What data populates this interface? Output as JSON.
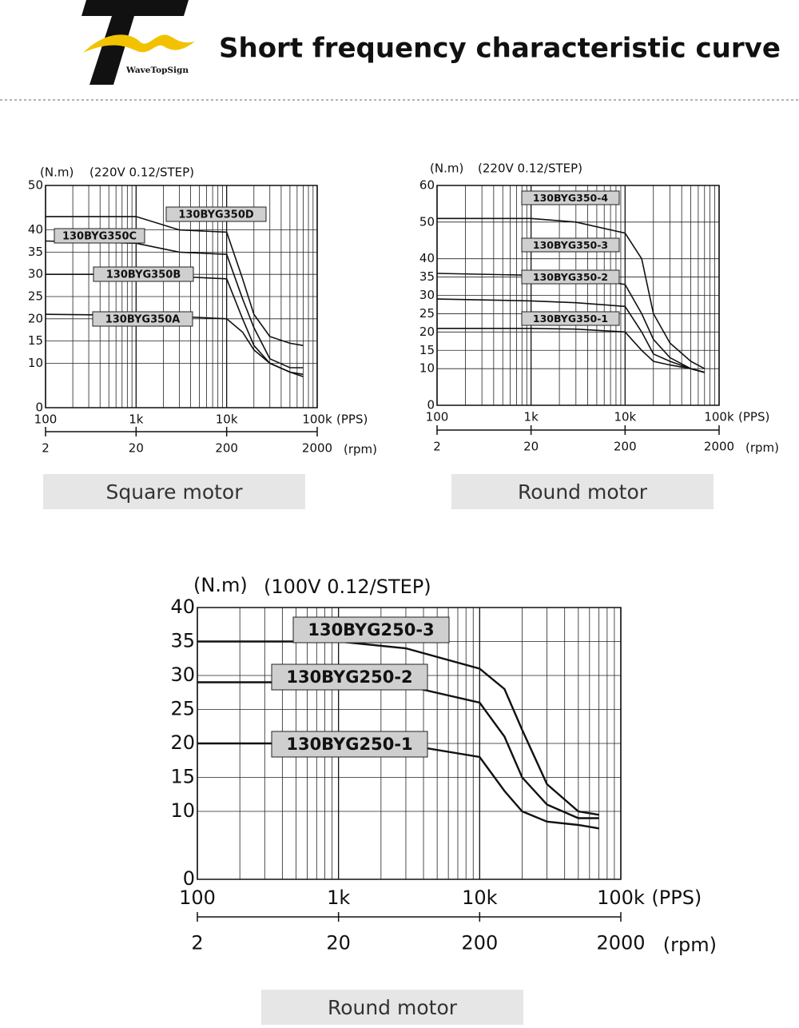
{
  "header": {
    "logo_text": "WaveTopSign",
    "title": "Short frequency characteristic curve"
  },
  "chart_data": [
    {
      "type": "line",
      "y_label": "(N.m)",
      "subtitle": "(220V 0.12/STEP)",
      "x_label": "(PPS)",
      "x2_label": "(rpm)",
      "caption": "Square motor",
      "x_scale": "log",
      "xlim": [
        100,
        100000
      ],
      "xticks": [
        100,
        {
          "value": 1000,
          "label": "1k"
        },
        {
          "value": 10000,
          "label": "10k"
        },
        {
          "value": 100000,
          "label": "100k"
        }
      ],
      "x2lim": [
        2,
        2000
      ],
      "x2ticks": [
        2,
        20,
        200,
        2000
      ],
      "ylim": [
        0,
        50
      ],
      "yticks": [
        0,
        10,
        15,
        20,
        25,
        30,
        35,
        40,
        50
      ],
      "grid": true,
      "x": [
        100,
        1000,
        3000,
        10000,
        15000,
        20000,
        30000,
        50000,
        70000
      ],
      "series": [
        {
          "name": "130BYG350D",
          "color": "#111111",
          "values": [
            43,
            43,
            40,
            39.5,
            29,
            21,
            16,
            14.5,
            14
          ]
        },
        {
          "name": "130BYG350C",
          "color": "#111111",
          "values": [
            37.5,
            37,
            35,
            34.5,
            24.5,
            18,
            11,
            9,
            9
          ]
        },
        {
          "name": "130BYG350B",
          "color": "#111111",
          "values": [
            30,
            30,
            29.5,
            29,
            20,
            14,
            10,
            8,
            7.5
          ]
        },
        {
          "name": "130BYG350A",
          "color": "#111111",
          "values": [
            21,
            20.8,
            20.5,
            20,
            17,
            13,
            10,
            8,
            7
          ]
        }
      ]
    },
    {
      "type": "line",
      "y_label": "(N.m)",
      "subtitle": "(220V 0.12/STEP)",
      "x_label": "(PPS)",
      "x2_label": "(rpm)",
      "caption": "Round motor",
      "x_scale": "log",
      "xlim": [
        100,
        100000
      ],
      "xticks": [
        100,
        {
          "value": 1000,
          "label": "1k"
        },
        {
          "value": 10000,
          "label": "10k"
        },
        {
          "value": 100000,
          "label": "100k"
        }
      ],
      "x2lim": [
        2,
        2000
      ],
      "x2ticks": [
        2,
        20,
        200,
        2000
      ],
      "ylim": [
        0,
        60
      ],
      "yticks": [
        0,
        10,
        15,
        20,
        25,
        30,
        35,
        40,
        50,
        60
      ],
      "grid": true,
      "x": [
        100,
        1000,
        3000,
        10000,
        15000,
        20000,
        30000,
        50000,
        70000
      ],
      "series": [
        {
          "name": "130BYG350-4",
          "color": "#111111",
          "values": [
            51,
            51,
            50,
            47,
            40,
            25,
            17,
            12,
            10
          ]
        },
        {
          "name": "130BYG350-3",
          "color": "#111111",
          "values": [
            36,
            35.5,
            35,
            33,
            25,
            18,
            13,
            10,
            9
          ]
        },
        {
          "name": "130BYG350-2",
          "color": "#111111",
          "values": [
            29,
            28.5,
            28,
            27,
            20,
            14,
            12,
            10,
            9
          ]
        },
        {
          "name": "130BYG350-1",
          "color": "#111111",
          "values": [
            21,
            21,
            20.8,
            20,
            15,
            12,
            11,
            10,
            9
          ]
        }
      ]
    },
    {
      "type": "line",
      "y_label": "(N.m)",
      "subtitle": "(100V 0.12/STEP)",
      "x_label": "(PPS)",
      "x2_label": "(rpm)",
      "caption": "Round motor",
      "x_scale": "log",
      "xlim": [
        100,
        100000
      ],
      "xticks": [
        100,
        {
          "value": 1000,
          "label": "1k"
        },
        {
          "value": 10000,
          "label": "10k"
        },
        {
          "value": 100000,
          "label": "100k"
        }
      ],
      "x2lim": [
        2,
        2000
      ],
      "x2ticks": [
        2,
        20,
        200,
        2000
      ],
      "ylim": [
        0,
        40
      ],
      "yticks": [
        0,
        10,
        15,
        20,
        25,
        30,
        35,
        40
      ],
      "grid": true,
      "x": [
        100,
        1000,
        3000,
        10000,
        15000,
        20000,
        30000,
        50000,
        70000
      ],
      "series": [
        {
          "name": "130BYG250-3",
          "color": "#111111",
          "values": [
            35,
            35,
            34,
            31,
            28,
            22,
            14,
            10,
            9.5
          ]
        },
        {
          "name": "130BYG250-2",
          "color": "#111111",
          "values": [
            29,
            29,
            28.5,
            26,
            21,
            15,
            11,
            9,
            9
          ]
        },
        {
          "name": "130BYG250-1",
          "color": "#111111",
          "values": [
            20,
            20,
            19.8,
            18,
            13,
            10,
            8.5,
            8,
            7.5
          ]
        }
      ]
    }
  ]
}
